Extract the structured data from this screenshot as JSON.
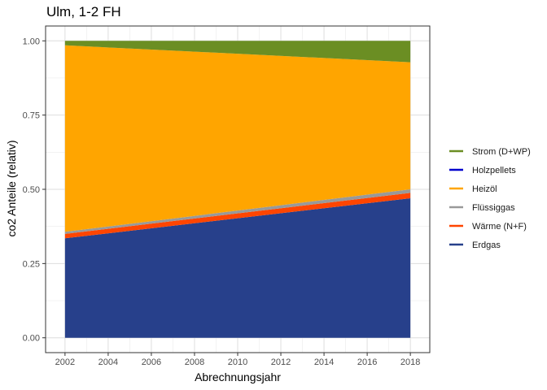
{
  "chart_data": {
    "type": "area",
    "stacked": true,
    "title": "Ulm, 1-2 FH",
    "xlabel": "Abrechnungsjahr",
    "ylabel": "co2 Anteile (relativ)",
    "xlim": [
      2001.1,
      2018.9
    ],
    "ylim": [
      -0.05,
      1.05
    ],
    "x": [
      2002,
      2018
    ],
    "x_ticks": [
      2002,
      2004,
      2006,
      2008,
      2010,
      2012,
      2014,
      2016,
      2018
    ],
    "x_tick_labels": [
      "2002",
      "2004",
      "2006",
      "2008",
      "2010",
      "2012",
      "2014",
      "2016",
      "2018"
    ],
    "y_ticks": [
      0,
      0.25,
      0.5,
      0.75,
      1.0
    ],
    "y_tick_labels": [
      "0.00",
      "0.25",
      "0.50",
      "0.75",
      "1.00"
    ],
    "grid": true,
    "legend_position": "right",
    "series": [
      {
        "name": "Erdgas",
        "color": "#27408B",
        "values": [
          0.335,
          0.47
        ]
      },
      {
        "name": "Wärme (N+F)",
        "color": "#FF4500",
        "values": [
          0.015,
          0.018
        ]
      },
      {
        "name": "Flüssiggas",
        "color": "#999999",
        "values": [
          0.007,
          0.012
        ]
      },
      {
        "name": "Heizöl",
        "color": "#FFA500",
        "values": [
          0.628,
          0.428
        ]
      },
      {
        "name": "Holzpellets",
        "color": "#0000CD",
        "values": [
          0.0,
          0.0
        ]
      },
      {
        "name": "Strom (D+WP)",
        "color": "#6B8E23",
        "values": [
          0.015,
          0.072
        ]
      }
    ],
    "legend_order": [
      "Strom (D+WP)",
      "Holzpellets",
      "Heizöl",
      "Flüssiggas",
      "Wärme (N+F)",
      "Erdgas"
    ]
  }
}
